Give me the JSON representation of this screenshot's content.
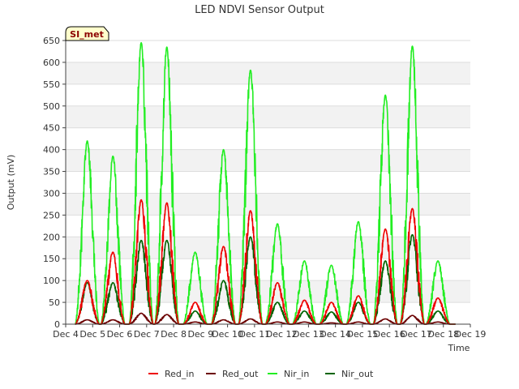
{
  "chart_data": {
    "type": "line",
    "title": "LED NDVI Sensor Output",
    "xlabel": "Time",
    "ylabel": "Output (mV)",
    "badge": "SI_met",
    "ylim": [
      0,
      650
    ],
    "y_ticks": [
      0,
      50,
      100,
      150,
      200,
      250,
      300,
      350,
      400,
      450,
      500,
      550,
      600,
      650
    ],
    "xlim": [
      0,
      15
    ],
    "x_ticks": [
      "Dec 4",
      "Dec 5",
      "Dec 6",
      "Dec 7",
      "Dec 8",
      "Dec 9",
      "Dec 10",
      "Dec 11",
      "Dec 12",
      "Dec 13",
      "Dec 14",
      "Dec 15",
      "Dec 16",
      "Dec 17",
      "Dec 18",
      "Dec 19"
    ],
    "data_start": 0.35,
    "data_end": 14.45,
    "day_centers": [
      0.8,
      1.75,
      2.8,
      3.75,
      4.8,
      5.85,
      6.85,
      7.85,
      8.85,
      9.85,
      10.85,
      11.85,
      12.85,
      13.8
    ],
    "day_width": 0.45,
    "series": [
      {
        "name": "Red_in",
        "color": "#ee0000",
        "daily_peaks": [
          100,
          165,
          285,
          278,
          50,
          178,
          260,
          95,
          55,
          50,
          65,
          218,
          265,
          60
        ]
      },
      {
        "name": "Red_out",
        "color": "#6b0000",
        "daily_peaks": [
          10,
          10,
          25,
          22,
          5,
          10,
          12,
          5,
          5,
          3,
          5,
          12,
          20,
          5
        ]
      },
      {
        "name": "Nir_in",
        "color": "#22ee22",
        "daily_peaks": [
          420,
          385,
          645,
          635,
          165,
          400,
          582,
          230,
          145,
          135,
          235,
          525,
          637,
          145
        ]
      },
      {
        "name": "Nir_out",
        "color": "#006400",
        "daily_peaks": [
          95,
          95,
          192,
          192,
          30,
          100,
          200,
          50,
          30,
          28,
          50,
          145,
          205,
          30
        ]
      }
    ]
  }
}
